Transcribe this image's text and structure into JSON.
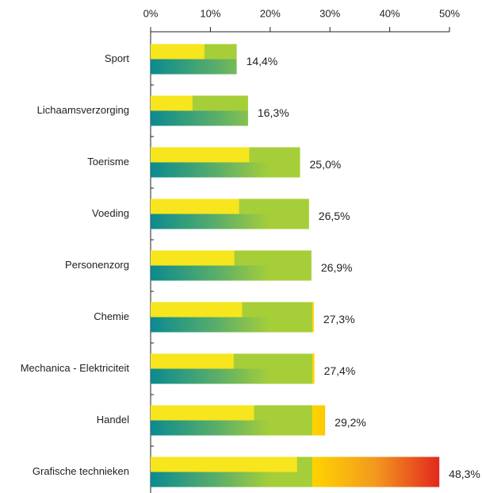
{
  "chart_data": {
    "type": "bar",
    "orientation": "horizontal",
    "categories": [
      "Sport",
      "Lichaamsverzorging",
      "Toerisme",
      "Voeding",
      "Personenzorg",
      "Chemie",
      "Mechanica - Elektriciteit",
      "Handel",
      "Grafische technieken"
    ],
    "series": [
      {
        "color": "#a6ce39",
        "values": [
          14.4,
          16.3,
          25.0,
          26.5,
          26.9,
          27.3,
          27.4,
          29.2,
          48.3
        ],
        "value_labels": [
          "14,4%",
          "16,3%",
          "25,0%",
          "26,5%",
          "26,9%",
          "27,3%",
          "27,4%",
          "29,2%",
          "48,3%"
        ]
      },
      {
        "color": "#f7e51d",
        "values": [
          9.0,
          7.0,
          16.5,
          14.8,
          14.0,
          15.3,
          13.9,
          17.3,
          24.5
        ]
      }
    ],
    "xlim": [
      0,
      50
    ],
    "xticks": [
      {
        "value": 0,
        "label": "0%"
      },
      {
        "value": 10,
        "label": "10%"
      },
      {
        "value": 20,
        "label": "20%"
      },
      {
        "value": 30,
        "label": "30%"
      },
      {
        "value": 40,
        "label": "40%"
      },
      {
        "value": 50,
        "label": "50%"
      }
    ]
  }
}
